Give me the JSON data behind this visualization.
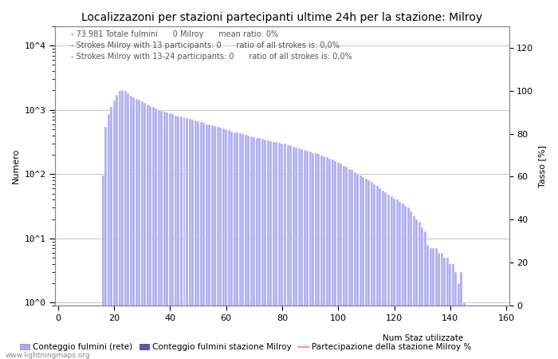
{
  "title": "Localizzazoni per stazioni partecipanti ultime 24h per la stazione: Milroy",
  "ylabel_left": "Numero",
  "ylabel_right": "Tasso [%]",
  "annotation_lines": [
    "73.981 Totale fulmini      0 Milroy      mean ratio: 0%",
    "Strokes Milroy with 13 participants: 0      ratio of all strokes is: 0,0%",
    "Strokes Milroy with 13-24 participants: 0      ratio of all strokes is: 0,0%"
  ],
  "xlim": [
    0,
    160
  ],
  "ylim_right": [
    0,
    130
  ],
  "bar_color_light": "#aaaaee",
  "bar_color_dark": "#5555bb",
  "line_color": "#ff88cc",
  "background_color": "#ffffff",
  "grid_color": "#bbbbbb",
  "watermark": "www.lightningmaps.org",
  "legend_labels": [
    "Conteggio fulmini (rete)",
    "Conteggio fulmini stazione Milroy",
    "Num Staz utilizzate",
    "Partecipazione della stazione Milroy %"
  ],
  "bar_values": [
    0,
    0,
    0,
    0,
    0,
    0,
    0,
    0,
    0,
    0,
    0,
    0,
    0,
    0,
    0,
    0,
    94,
    550,
    870,
    1100,
    1400,
    1700,
    1950,
    2050,
    1950,
    1800,
    1650,
    1550,
    1500,
    1450,
    1350,
    1300,
    1200,
    1150,
    1100,
    1050,
    1000,
    970,
    940,
    910,
    880,
    850,
    820,
    800,
    780,
    760,
    740,
    720,
    700,
    680,
    660,
    640,
    620,
    600,
    585,
    570,
    555,
    540,
    525,
    510,
    495,
    480,
    465,
    450,
    440,
    430,
    420,
    410,
    400,
    390,
    380,
    370,
    360,
    350,
    340,
    335,
    330,
    320,
    315,
    310,
    300,
    295,
    285,
    280,
    270,
    260,
    255,
    245,
    240,
    230,
    225,
    215,
    210,
    205,
    195,
    190,
    185,
    175,
    170,
    160,
    150,
    145,
    135,
    130,
    120,
    115,
    108,
    100,
    95,
    90,
    85,
    80,
    75,
    70,
    65,
    60,
    55,
    52,
    48,
    45,
    42,
    40,
    37,
    35,
    32,
    30,
    26,
    22,
    20,
    18,
    15,
    13,
    8,
    7,
    7,
    7,
    6,
    6,
    5,
    5,
    4,
    4,
    3,
    2,
    3,
    1,
    0,
    0,
    0,
    0,
    0,
    0,
    0,
    0,
    0,
    0,
    0,
    0,
    0,
    0,
    0,
    0,
    0,
    0,
    0,
    0
  ],
  "milroy_bar_values": [
    0,
    0,
    0,
    0,
    0,
    0,
    0,
    0,
    0,
    0,
    0,
    0,
    0,
    0,
    0,
    0,
    0,
    0,
    0,
    0,
    0,
    0,
    0,
    0,
    0,
    0,
    0,
    0,
    0,
    0,
    0,
    0,
    0,
    0,
    0,
    0,
    0,
    0,
    0,
    0,
    0,
    0,
    0,
    0,
    0,
    0,
    0,
    0,
    0,
    0,
    0,
    0,
    0,
    0,
    0,
    0,
    0,
    0,
    0,
    0,
    0,
    0,
    0,
    0,
    0,
    0,
    0,
    0,
    0,
    0,
    0,
    0,
    0,
    0,
    0,
    0,
    0,
    0,
    0,
    0,
    0,
    0,
    0,
    0,
    0,
    0,
    0,
    0,
    0,
    0,
    0,
    0,
    0,
    0,
    0,
    0,
    0,
    0,
    0,
    0,
    0,
    0,
    0,
    0,
    0,
    0,
    0,
    0,
    0,
    0,
    0,
    0,
    0,
    0,
    0,
    0,
    0,
    0,
    0,
    0,
    0,
    0,
    0,
    0,
    0,
    0,
    0,
    0,
    0,
    0,
    0,
    0,
    0,
    0,
    0,
    0,
    0,
    0,
    0,
    0,
    0,
    0,
    0,
    0,
    0,
    0,
    0,
    0,
    0,
    0,
    0,
    0,
    0,
    0,
    0,
    0,
    0,
    0,
    0,
    0
  ],
  "xticks": [
    0,
    20,
    40,
    60,
    80,
    100,
    120,
    140,
    160
  ],
  "yticks_right": [
    0,
    20,
    40,
    60,
    80,
    100,
    120
  ],
  "title_fontsize": 10,
  "axis_fontsize": 8,
  "tick_fontsize": 8,
  "annotation_fontsize": 7
}
